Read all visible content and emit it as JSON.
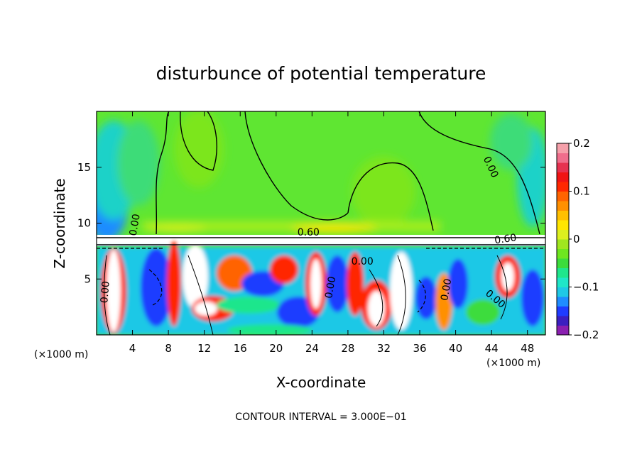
{
  "chart_data": {
    "type": "heatmap",
    "title": "disturbunce of potential temperature",
    "xlabel": "X-coordinate",
    "ylabel": "Z-coordinate",
    "x_unit": "(×1000 m)",
    "xlim": [
      0,
      50
    ],
    "ylim": [
      0,
      20
    ],
    "x_ticks": [
      4,
      8,
      12,
      16,
      20,
      24,
      28,
      32,
      36,
      40,
      44,
      48
    ],
    "y_ticks": [
      5,
      10,
      15
    ],
    "colorbar": {
      "range": [
        -0.2,
        0.2
      ],
      "tick_values": [
        0.2,
        0.1,
        0,
        -0.1,
        -0.2
      ],
      "tick_labels": [
        "0.2",
        "0.1",
        "0",
        "−0.1",
        "−0.2"
      ],
      "colors": [
        "#8a1fb0",
        "#3b1fc0",
        "#1f3cff",
        "#1f8cff",
        "#1fc8e6",
        "#1fe6c8",
        "#1fe68c",
        "#3cdc3c",
        "#6ee61f",
        "#a0e61f",
        "#dcf01f",
        "#ffe600",
        "#ffc000",
        "#ff9000",
        "#ff6400",
        "#ff2800",
        "#f01414",
        "#e63250",
        "#f06e8c",
        "#f5a0aa"
      ]
    },
    "contour_labels": [
      {
        "text": "0.00",
        "x": 4.6,
        "z": 9.8,
        "rot": -80
      },
      {
        "text": "0.60",
        "x": 23.6,
        "z": 8.9,
        "rot": 0
      },
      {
        "text": "0.60",
        "x": 45.6,
        "z": 8.3,
        "rot": -8
      },
      {
        "text": "0.00",
        "x": 43.6,
        "z": 14.9,
        "rot": 65
      },
      {
        "text": "0.00",
        "x": 29.6,
        "z": 6.3,
        "rot": 0
      },
      {
        "text": "0.00",
        "x": 1.3,
        "z": 3.8,
        "rot": -85
      },
      {
        "text": "0.00",
        "x": 26.4,
        "z": 4.2,
        "rot": -80
      },
      {
        "text": "0.00",
        "x": 39.3,
        "z": 4.0,
        "rot": -80
      },
      {
        "text": "0.00",
        "x": 44.2,
        "z": 3.0,
        "rot": 40
      }
    ],
    "contour_interval_text": "CONTOUR INTERVAL = 3.000E−01"
  }
}
